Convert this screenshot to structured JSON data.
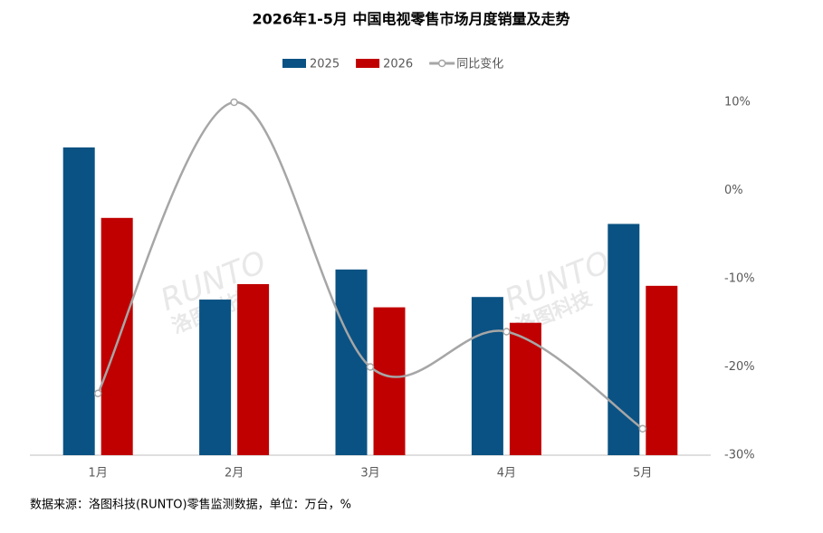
{
  "chart_data": {
    "type": "bar_line",
    "title": "2026年1-5月 中国电视零售市场月度销量及走势",
    "categories": [
      "1月",
      "2月",
      "3月",
      "4月",
      "5月"
    ],
    "series": [
      {
        "name": "2025",
        "color": "#0a5283",
        "type": "bar",
        "values": [
          358,
          181,
          216,
          184,
          269
        ]
      },
      {
        "name": "2026",
        "color": "#c00000",
        "type": "bar",
        "values": [
          276,
          199,
          172,
          154,
          197
        ]
      },
      {
        "name": "同比变化",
        "color": "#a6a6a6",
        "type": "line",
        "axis": "y2",
        "values": [
          -23,
          10,
          -20,
          -16,
          -27
        ]
      }
    ],
    "ylim": [
      0,
      400
    ],
    "y2lim": [
      -30,
      10
    ],
    "y2ticks": [
      {
        "value": 10,
        "label": "10%"
      },
      {
        "value": 0,
        "label": "0%"
      },
      {
        "value": -10,
        "label": "-10%"
      },
      {
        "value": -20,
        "label": "-20%"
      },
      {
        "value": -30,
        "label": "-30%"
      }
    ],
    "source": "数据来源：洛图科技(RUNTO)零售监测数据，单位：万台，%",
    "watermark": [
      "RUNTO",
      "洛图科技"
    ]
  }
}
